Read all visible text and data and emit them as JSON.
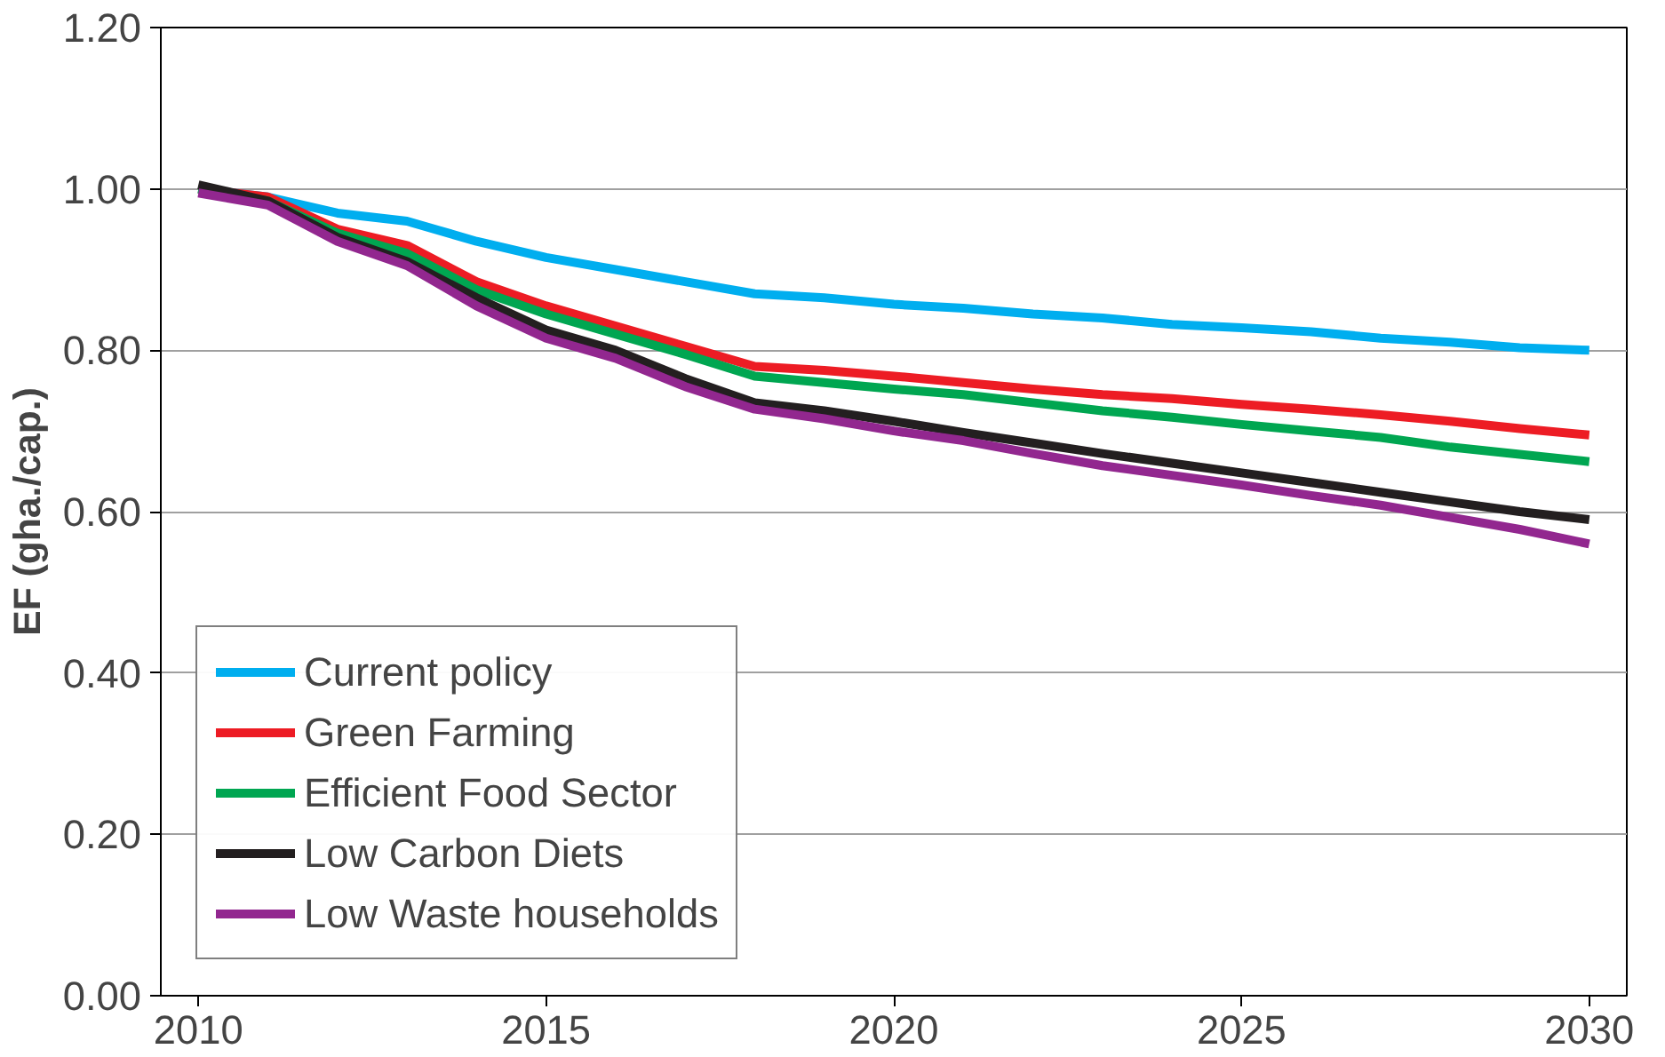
{
  "chart_data": {
    "type": "line",
    "ylabel": "EF (gha./cap.)",
    "x": [
      2010,
      2011,
      2012,
      2013,
      2014,
      2015,
      2016,
      2017,
      2018,
      2019,
      2020,
      2021,
      2022,
      2023,
      2024,
      2025,
      2026,
      2027,
      2028,
      2029,
      2030
    ],
    "xlim": [
      2009.46,
      2030.54
    ],
    "xticks": [
      2010,
      2015,
      2020,
      2025,
      2030
    ],
    "ylim": [
      0,
      1.2
    ],
    "yticks": [
      {
        "value": 0,
        "label": "0.00"
      },
      {
        "value": 0.2,
        "label": "0.20"
      },
      {
        "value": 0.4,
        "label": "0.40"
      },
      {
        "value": 0.6,
        "label": "0.60"
      },
      {
        "value": 0.8,
        "label": "0.80"
      },
      {
        "value": 1.0,
        "label": "1.00"
      },
      {
        "value": 1.2,
        "label": "1.20"
      }
    ],
    "grid": "y",
    "legend": "bottom left",
    "marker": "none",
    "line_style": "solid",
    "series": [
      {
        "name": "Current policy",
        "color": "#00aeef",
        "values": [
          1.0,
          0.99,
          0.97,
          0.96,
          0.935,
          0.915,
          0.9,
          0.885,
          0.87,
          0.865,
          0.857,
          0.852,
          0.845,
          0.84,
          0.832,
          0.828,
          0.823,
          0.815,
          0.81,
          0.803,
          0.8
        ]
      },
      {
        "name": "Green Farming",
        "color": "#ed1c24",
        "values": [
          1.0,
          0.99,
          0.95,
          0.93,
          0.885,
          0.855,
          0.83,
          0.805,
          0.78,
          0.775,
          0.768,
          0.76,
          0.752,
          0.745,
          0.74,
          0.733,
          0.727,
          0.72,
          0.712,
          0.703,
          0.695
        ]
      },
      {
        "name": "Efficient Food Sector",
        "color": "#00a651",
        "values": [
          1.0,
          0.985,
          0.945,
          0.92,
          0.875,
          0.845,
          0.82,
          0.795,
          0.768,
          0.76,
          0.752,
          0.745,
          0.735,
          0.725,
          0.717,
          0.708,
          0.7,
          0.692,
          0.68,
          0.671,
          0.662
        ]
      },
      {
        "name": "Low Carbon Diets",
        "color": "#231f20",
        "values": [
          1.005,
          0.985,
          0.94,
          0.91,
          0.865,
          0.825,
          0.8,
          0.765,
          0.735,
          0.725,
          0.712,
          0.698,
          0.685,
          0.672,
          0.66,
          0.648,
          0.636,
          0.624,
          0.612,
          0.6,
          0.59
        ]
      },
      {
        "name": "Low Waste households",
        "color": "#92278f",
        "values": [
          0.995,
          0.98,
          0.935,
          0.905,
          0.855,
          0.815,
          0.79,
          0.755,
          0.727,
          0.715,
          0.7,
          0.688,
          0.672,
          0.657,
          0.645,
          0.633,
          0.62,
          0.608,
          0.593,
          0.578,
          0.56
        ]
      }
    ]
  }
}
